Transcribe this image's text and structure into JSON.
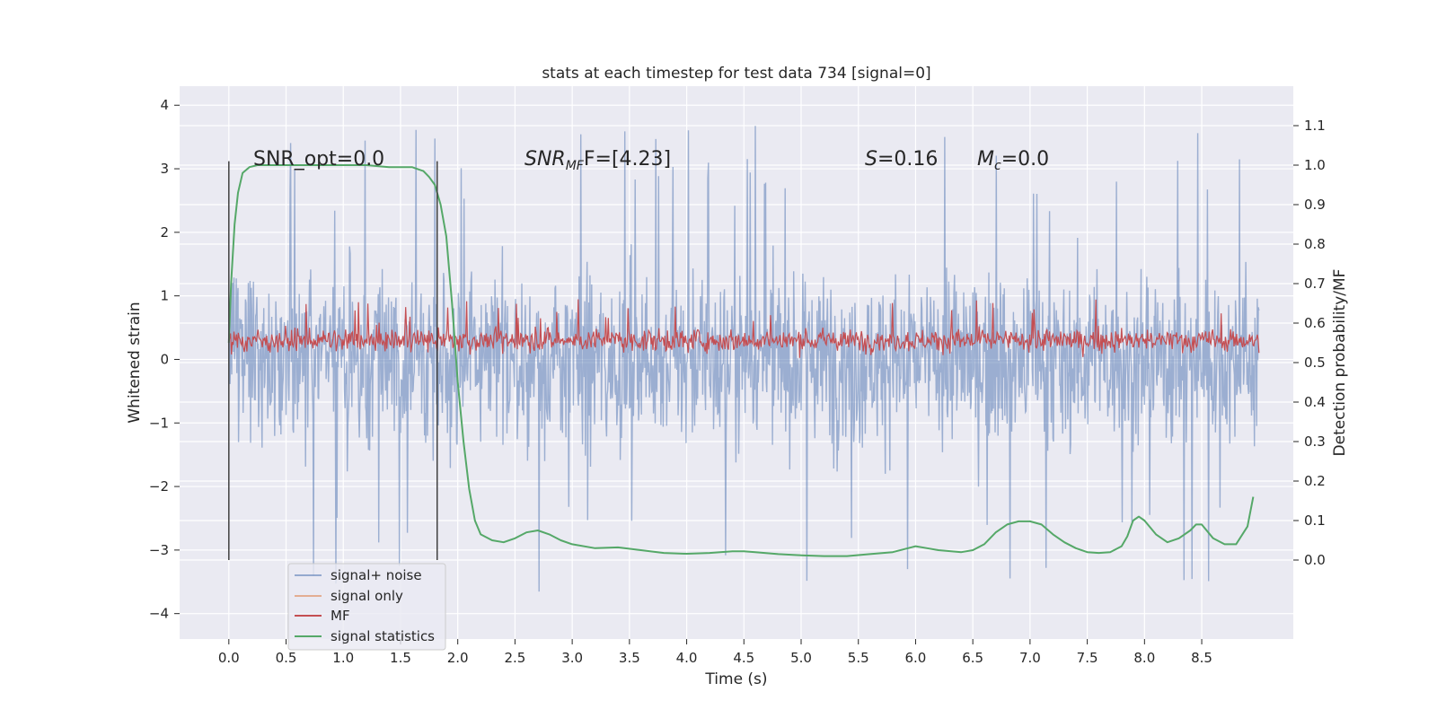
{
  "chart_data": {
    "type": "line",
    "title": "stats at each timestep for test data 734 [signal=0]",
    "xlabel": "Time (s)",
    "ylabel_left": "Whitened strain",
    "ylabel_right": "Detection probability/MF",
    "xlim": [
      -0.43,
      9.3
    ],
    "ylim_left": [
      -4.4,
      4.3
    ],
    "ylim_right": [
      -0.2,
      1.2
    ],
    "xticks": [
      0.0,
      0.5,
      1.0,
      1.5,
      2.0,
      2.5,
      3.0,
      3.5,
      4.0,
      4.5,
      5.0,
      5.5,
      6.0,
      6.5,
      7.0,
      7.5,
      8.0,
      8.5
    ],
    "xtick_labels": [
      "0.0",
      "0.5",
      "1.0",
      "1.5",
      "2.0",
      "2.5",
      "3.0",
      "3.5",
      "4.0",
      "4.5",
      "5.0",
      "5.5",
      "6.0",
      "6.5",
      "7.0",
      "7.5",
      "8.0",
      "8.5"
    ],
    "yticks_left": [
      4,
      3,
      2,
      1,
      0,
      -1,
      -2,
      -3,
      -4
    ],
    "ytick_labels_left": [
      "4",
      "3",
      "2",
      "1",
      "0",
      "−1",
      "−2",
      "−3",
      "−4"
    ],
    "yticks_right": [
      1.1,
      1.0,
      0.9,
      0.8,
      0.7,
      0.6,
      0.5,
      0.4,
      0.3,
      0.2,
      0.1,
      0.0
    ],
    "ytick_labels_right": [
      "1.1",
      "1.0",
      "0.9",
      "0.8",
      "0.7",
      "0.6",
      "0.5",
      "0.4",
      "0.3",
      "0.2",
      "0.1",
      "0.0"
    ],
    "annotations": {
      "snr_opt": "SNR_opt=0.0",
      "snr_mf_sym": "SNR",
      "snr_mf_sub": "MF",
      "snr_mf_val": "F=[4.23]",
      "s_sym": "S",
      "s_val": "=0.16",
      "mc_sym": "M",
      "mc_sub": "c",
      "mc_val": "=0.0"
    },
    "vertical_markers": [
      0.0,
      1.82
    ],
    "legend": {
      "location": "lower-left",
      "entries": [
        {
          "label": "signal+ noise",
          "color": "#4c72b0"
        },
        {
          "label": "signal only",
          "color": "#dd8452"
        },
        {
          "label": "MF",
          "color": "#c44e52"
        },
        {
          "label": "signal statistics",
          "color": "#55a868"
        }
      ]
    },
    "series": [
      {
        "name": "signal+ noise",
        "axis": "left",
        "color": "#4c72b0",
        "x_range": [
          0.0,
          9.0
        ],
        "typical_amplitude": 1.3,
        "max_peak": 3.9,
        "min_trough": -4.0
      },
      {
        "name": "signal only",
        "axis": "left",
        "color": "#dd8452",
        "values": []
      },
      {
        "name": "MF",
        "axis": "left",
        "color": "#c44e52",
        "x_range": [
          0.0,
          9.0
        ],
        "baseline": 0.3,
        "spread": 0.35,
        "max_peak": 0.98
      },
      {
        "name": "signal statistics",
        "axis": "right",
        "color": "#55a868",
        "x": [
          0.0,
          0.02,
          0.05,
          0.08,
          0.12,
          0.18,
          0.25,
          0.4,
          0.6,
          0.8,
          1.0,
          1.2,
          1.4,
          1.5,
          1.6,
          1.65,
          1.7,
          1.75,
          1.8,
          1.85,
          1.9,
          1.95,
          2.0,
          2.05,
          2.1,
          2.15,
          2.2,
          2.3,
          2.4,
          2.5,
          2.6,
          2.7,
          2.8,
          2.9,
          3.0,
          3.2,
          3.4,
          3.6,
          3.8,
          4.0,
          4.2,
          4.4,
          4.5,
          4.6,
          4.8,
          5.0,
          5.2,
          5.4,
          5.6,
          5.8,
          6.0,
          6.1,
          6.2,
          6.4,
          6.5,
          6.6,
          6.7,
          6.8,
          6.9,
          7.0,
          7.1,
          7.2,
          7.3,
          7.4,
          7.5,
          7.6,
          7.7,
          7.8,
          7.85,
          7.9,
          7.95,
          8.0,
          8.1,
          8.2,
          8.3,
          8.4,
          8.45,
          8.5,
          8.6,
          8.7,
          8.8,
          8.9,
          8.95
        ],
        "values": [
          0.55,
          0.7,
          0.85,
          0.93,
          0.98,
          0.995,
          1.0,
          1.0,
          1.0,
          1.0,
          1.0,
          1.0,
          0.995,
          0.995,
          0.995,
          0.99,
          0.985,
          0.97,
          0.95,
          0.9,
          0.82,
          0.65,
          0.45,
          0.3,
          0.18,
          0.1,
          0.065,
          0.05,
          0.045,
          0.055,
          0.07,
          0.075,
          0.065,
          0.05,
          0.04,
          0.03,
          0.032,
          0.025,
          0.018,
          0.016,
          0.018,
          0.022,
          0.022,
          0.02,
          0.015,
          0.012,
          0.01,
          0.01,
          0.015,
          0.02,
          0.035,
          0.03,
          0.025,
          0.02,
          0.025,
          0.04,
          0.07,
          0.09,
          0.098,
          0.098,
          0.09,
          0.065,
          0.045,
          0.03,
          0.02,
          0.018,
          0.02,
          0.035,
          0.06,
          0.1,
          0.11,
          0.1,
          0.065,
          0.045,
          0.055,
          0.075,
          0.09,
          0.09,
          0.055,
          0.04,
          0.04,
          0.085,
          0.16
        ]
      }
    ]
  }
}
